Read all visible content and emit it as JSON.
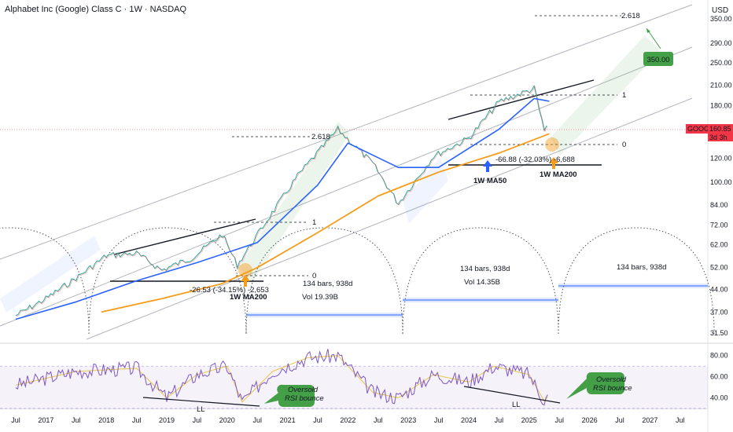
{
  "header": {
    "title": "Alphabet Inc (Google) Class C · 1W · NASDAQ",
    "currency": "USD"
  },
  "price_axis": {
    "ticks": [
      "350.00",
      "290.00",
      "250.00",
      "210.00",
      "180.00",
      "150.00",
      "120.00",
      "100.00",
      "84.00",
      "72.00",
      "62.00",
      "52.00",
      "44.00",
      "37.00",
      "31.50"
    ],
    "current": {
      "symbol": "GOOG",
      "price": "160.85",
      "countdown": "3d 3h"
    }
  },
  "rsi_axis": {
    "ticks": [
      "80.00",
      "60.00",
      "40.00"
    ]
  },
  "time_axis": {
    "labels": [
      "Jul",
      "2017",
      "Jul",
      "2018",
      "Jul",
      "2019",
      "Jul",
      "2020",
      "Jul",
      "2021",
      "Jul",
      "2022",
      "Jul",
      "2023",
      "Jul",
      "2024",
      "Jul",
      "2025",
      "Jul",
      "2026",
      "Jul",
      "2027",
      "Jul"
    ]
  },
  "annotations": {
    "fib_2618_top": "2.618",
    "target": "350.00",
    "fib_1_right": "1",
    "fib_0_right": "0",
    "fib_2618_mid": "2.618",
    "fib_1_left": "1",
    "fib_0_left": "0",
    "drop_left": "-26.53 (-34.15%) -2,653",
    "drop_right": "-66.88 (-32.03%) -6,688",
    "ma200_left": "1W MA200",
    "ma50_right": "1W MA50",
    "ma200_right": "1W MA200",
    "cycle1_bars": "134 bars, 938d",
    "cycle1_vol": "Vol 19.39B",
    "cycle2_bars": "134 bars, 938d",
    "cycle2_vol": "Vol 14.35B",
    "cycle3_bars": "134 bars, 938d",
    "ll_left": "LL",
    "ll_right": "LL",
    "rsi_note_left_1": "Oversold",
    "rsi_note_left_2": "RSI bounce",
    "rsi_note_right_1": "Oversold",
    "rsi_note_right_2": "RSI bounce"
  },
  "colors": {
    "price_up": "#26a69a",
    "price_down": "#ef5350",
    "ma50": "#2962ff",
    "ma200": "#f59c1a",
    "rsi": "#7e57c2",
    "rsi_ma": "#e8c547",
    "target_box": "#43a047",
    "current_tag": "#f23645"
  },
  "chart_data": [
    {
      "type": "line",
      "title": "Alphabet Inc (Google) Class C · 1W · NASDAQ",
      "y_scale": "log",
      "ylim": [
        30,
        380
      ],
      "x_range": [
        "2016-07",
        "2027-09"
      ],
      "series": [
        {
          "name": "",
          "x": [
            "2016-07",
            "2017-01",
            "2017-07",
            "2018-01",
            "2018-07",
            "2018-12",
            "2019-06",
            "2019-12",
            "2020-03",
            "2020-09",
            "2021-03",
            "2021-11",
            "2022-06",
            "2022-11",
            "2023-06",
            "2024-01",
            "2024-07",
            "2025-02",
            "2025-04",
            "2025-05"
          ],
          "values": [
            36,
            41,
            48,
            57,
            58,
            51,
            56,
            67,
            53,
            75,
            105,
            150,
            115,
            85,
            122,
            140,
            185,
            205,
            148,
            161
          ]
        },
        {
          "name": "1W MA50",
          "x": [
            "2016-07",
            "2017-07",
            "2018-07",
            "2019-07",
            "2020-07",
            "2021-07",
            "2022-01",
            "2022-11",
            "2023-07",
            "2024-07",
            "2025-02",
            "2025-05"
          ],
          "values": [
            35,
            40,
            47,
            54,
            63,
            98,
            135,
            112,
            112,
            150,
            190,
            186
          ]
        },
        {
          "name": "1W MA200",
          "x": [
            "2017-12",
            "2018-12",
            "2019-12",
            "2020-07",
            "2021-07",
            "2022-07",
            "2023-07",
            "2024-07",
            "2025-05"
          ],
          "values": [
            37,
            41,
            46,
            52,
            68,
            90,
            108,
            125,
            145
          ]
        }
      ]
    },
    {
      "type": "line",
      "ylim": [
        30,
        85
      ],
      "series": [
        {
          "name": "",
          "x": [
            "2016-07",
            "2017-07",
            "2018-07",
            "2019-01",
            "2019-07",
            "2020-01",
            "2020-04",
            "2020-10",
            "2021-05",
            "2021-11",
            "2022-06",
            "2022-11",
            "2023-06",
            "2024-01",
            "2024-06",
            "2025-01",
            "2025-04",
            "2025-05"
          ],
          "values": [
            52,
            65,
            68,
            40,
            62,
            70,
            36,
            65,
            78,
            80,
            45,
            40,
            62,
            55,
            70,
            62,
            37,
            43
          ]
        }
      ]
    }
  ]
}
